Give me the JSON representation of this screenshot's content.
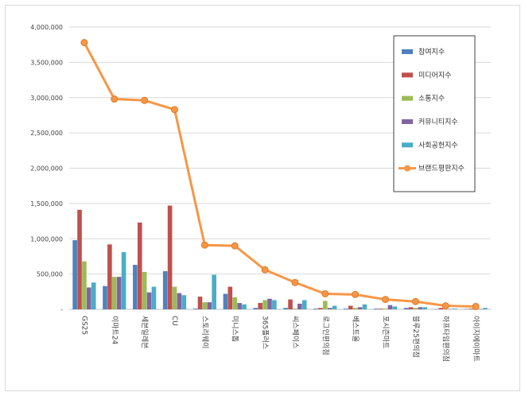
{
  "chart_data": {
    "type": "bar",
    "title": "",
    "xlabel": "",
    "ylabel": "",
    "ylim": [
      0,
      4000000
    ],
    "yticks": [
      0,
      500000,
      1000000,
      1500000,
      2000000,
      2500000,
      3000000,
      3500000,
      4000000
    ],
    "ytick_labels": [
      "-",
      "500,000",
      "1,000,000",
      "1,500,000",
      "2,000,000",
      "2,500,000",
      "3,000,000",
      "3,500,000",
      "4,000,000"
    ],
    "grid": true,
    "legend_position": "top-right",
    "categories": [
      "GS25",
      "이마트24",
      "세븐일레븐",
      "CU",
      "스토리웨이",
      "미니스톱",
      "365플러스",
      "씨스페이스",
      "로그인편의점",
      "베스트올",
      "포시즌마트",
      "블루25편의점",
      "하프타임편의점",
      "아이지에이마트"
    ],
    "series": [
      {
        "name": "참여지수",
        "kind": "bar",
        "color": "#4f81bd",
        "values": [
          980000,
          330000,
          630000,
          540000,
          10000,
          220000,
          20000,
          20000,
          10000,
          10000,
          10000,
          20000,
          5000,
          5000
        ]
      },
      {
        "name": "미디어지수",
        "kind": "bar",
        "color": "#c0504d",
        "values": [
          1410000,
          920000,
          1230000,
          1470000,
          180000,
          320000,
          90000,
          140000,
          20000,
          50000,
          10000,
          30000,
          20000,
          10000
        ]
      },
      {
        "name": "소통지수",
        "kind": "bar",
        "color": "#9bbb59",
        "values": [
          680000,
          460000,
          530000,
          320000,
          100000,
          170000,
          130000,
          10000,
          120000,
          20000,
          10000,
          20000,
          10000,
          10000
        ]
      },
      {
        "name": "커뮤니티지수",
        "kind": "bar",
        "color": "#8064a2",
        "values": [
          310000,
          460000,
          240000,
          230000,
          100000,
          90000,
          150000,
          80000,
          20000,
          30000,
          60000,
          30000,
          5000,
          5000
        ]
      },
      {
        "name": "사회공헌지수",
        "kind": "bar",
        "color": "#4bacc6",
        "values": [
          380000,
          810000,
          320000,
          200000,
          490000,
          70000,
          130000,
          130000,
          50000,
          70000,
          40000,
          30000,
          10000,
          20000
        ]
      },
      {
        "name": "브랜드평판지수",
        "kind": "line",
        "color": "#f79646",
        "values": [
          3780000,
          2980000,
          2960000,
          2830000,
          910000,
          900000,
          560000,
          380000,
          220000,
          210000,
          140000,
          110000,
          50000,
          40000
        ]
      }
    ]
  }
}
